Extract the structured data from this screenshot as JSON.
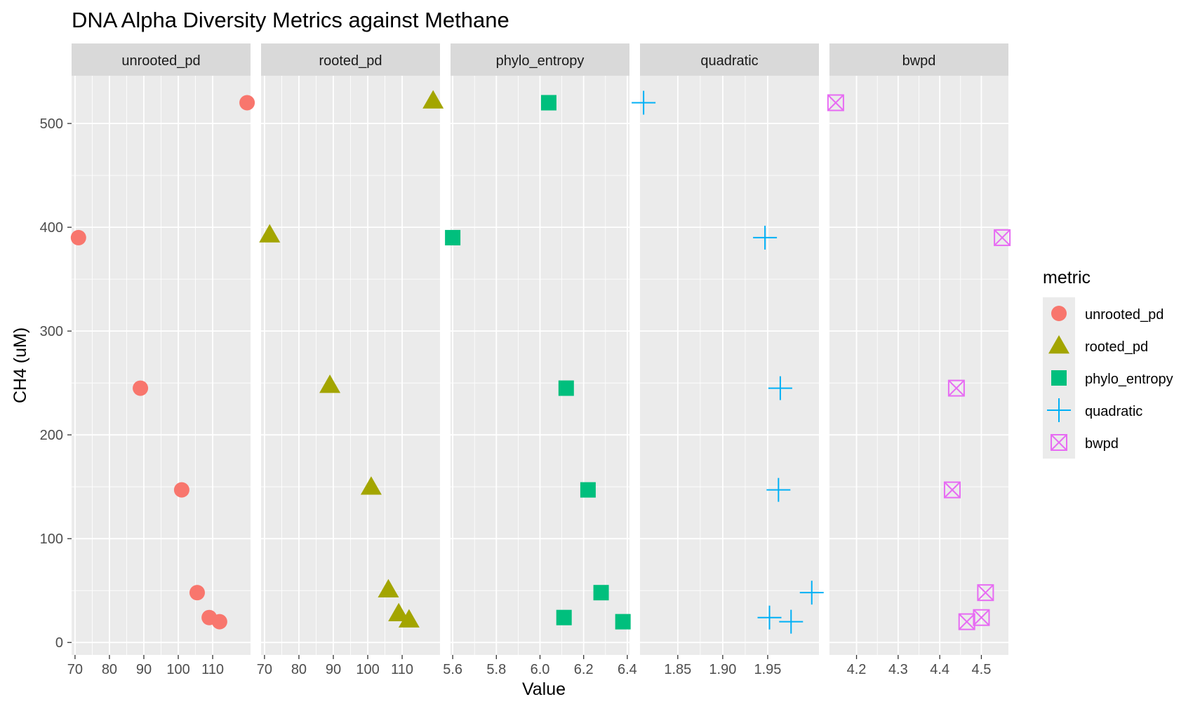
{
  "chart_data": {
    "type": "scatter",
    "title": "DNA Alpha Diversity Metrics against Methane",
    "xlabel": "Value",
    "ylabel": "CH4 (uM)",
    "grid": true,
    "legend_position": "right",
    "legend_title": "metric",
    "ylim": [
      -12,
      546
    ],
    "yticks": [
      0,
      100,
      200,
      300,
      400,
      500
    ],
    "colors": {
      "unrooted_pd": "#F8766D",
      "rooted_pd": "#A3A500",
      "phylo_entropy": "#00BF7D",
      "quadratic": "#00B0F6",
      "bwpd": "#E76BF3"
    },
    "panels": [
      {
        "name": "unrooted_pd",
        "shape": "circle",
        "xlim": [
          69,
          121
        ],
        "xticks": [
          70,
          80,
          90,
          100,
          110
        ],
        "xtick_labels": [
          "70",
          "80",
          "90",
          "100",
          "110"
        ],
        "x": [
          120,
          71,
          89,
          101,
          105.5,
          109,
          112
        ],
        "y": [
          520,
          390,
          245,
          147,
          48,
          24,
          20
        ]
      },
      {
        "name": "rooted_pd",
        "shape": "triangle",
        "xlim": [
          69,
          121
        ],
        "xticks": [
          70,
          80,
          90,
          100,
          110
        ],
        "xtick_labels": [
          "70",
          "80",
          "90",
          "100",
          "110"
        ],
        "x": [
          119,
          71.5,
          89,
          101,
          106,
          109,
          112
        ],
        "y": [
          522,
          393,
          248,
          150,
          51,
          28,
          22
        ]
      },
      {
        "name": "phylo_entropy",
        "shape": "square",
        "xlim": [
          5.59,
          6.41
        ],
        "xticks": [
          5.6,
          5.8,
          6.0,
          6.2,
          6.4
        ],
        "xtick_labels": [
          "5.6",
          "5.8",
          "6.0",
          "6.2",
          "6.4"
        ],
        "x": [
          6.04,
          5.6,
          6.12,
          6.22,
          6.28,
          6.11,
          6.38
        ],
        "y": [
          520,
          390,
          245,
          147,
          48,
          24,
          20
        ]
      },
      {
        "name": "quadratic",
        "shape": "plus",
        "xlim": [
          1.808,
          2.007
        ],
        "xticks": [
          1.85,
          1.9,
          1.95
        ],
        "xtick_labels": [
          "1.85",
          "1.90",
          "1.95"
        ],
        "x": [
          1.812,
          1.947,
          1.964,
          1.962,
          1.999,
          1.952,
          1.976
        ],
        "y": [
          520,
          390,
          245,
          147,
          48,
          24,
          20
        ]
      },
      {
        "name": "bwpd",
        "shape": "square-cross",
        "xlim": [
          4.135,
          4.565
        ],
        "xticks": [
          4.2,
          4.3,
          4.4,
          4.5
        ],
        "xtick_labels": [
          "4.2",
          "4.3",
          "4.4",
          "4.5"
        ],
        "x": [
          4.15,
          4.55,
          4.44,
          4.43,
          4.51,
          4.5,
          4.465
        ],
        "y": [
          520,
          390,
          245,
          147,
          48,
          24,
          20
        ]
      }
    ]
  }
}
